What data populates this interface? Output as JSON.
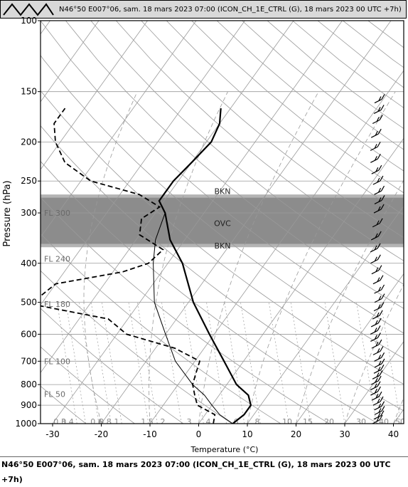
{
  "header": {
    "title": "N46°50 E007°06, sam. 18 mars 2023 07:00 (ICON_CH_1E_CTRL (G), 18 mars 2023 00 UTC  +7h)"
  },
  "footer": {
    "text": "N46°50 E007°06, sam. 18 mars 2023 07:00 (ICON_CH_1E_CTRL (G), 18 mars 2023 00 UTC  +7h)"
  },
  "colors": {
    "background": "#ffffff",
    "grid": "#9a9a9a",
    "cloud_band": "#8c8c8c",
    "temperature_line": "#000000"
  },
  "chart_data": {
    "type": "line",
    "subtype": "skew-T log-P sounding",
    "xlabel": "Temperature (°C)",
    "ylabel": "Pressure (hPa)",
    "xlim": [
      -33,
      42
    ],
    "ylim": [
      1000,
      100
    ],
    "yscale": "log",
    "x_ticks": [
      -30,
      -20,
      -10,
      0,
      10,
      20,
      30,
      40
    ],
    "y_ticks": [
      100,
      150,
      200,
      250,
      300,
      400,
      500,
      600,
      700,
      800,
      900,
      1000
    ],
    "isotherm_labels": [
      "-30",
      "-20",
      "-10",
      "0",
      "10",
      "20",
      "30",
      "40"
    ],
    "mixing_ratio_labels": [
      "0.3",
      "0.4",
      "0.6",
      "0.8",
      "1",
      "1.5",
      "2",
      "3",
      "4",
      "6",
      "8",
      "10",
      "15",
      "20",
      "30",
      "40",
      "50"
    ],
    "flight_levels": [
      {
        "label": "FL 300",
        "pressure": 300
      },
      {
        "label": "FL 240",
        "pressure": 390
      },
      {
        "label": "FL 180",
        "pressure": 505
      },
      {
        "label": "FL 100",
        "pressure": 700
      },
      {
        "label": "FL 50",
        "pressure": 845
      }
    ],
    "cloud_layers": [
      {
        "label": "BKN",
        "pressure": 265
      },
      {
        "label": "OVC",
        "pressure": 318
      },
      {
        "label": "BKN",
        "pressure": 362
      }
    ],
    "cloud_band": {
      "top_pressure": 270,
      "bottom_pressure": 365,
      "inner_top": 275,
      "inner_bottom": 358
    },
    "series": [
      {
        "name": "Temperature",
        "style": "bold",
        "points": [
          [
            1000,
            7
          ],
          [
            950,
            8
          ],
          [
            900,
            8
          ],
          [
            850,
            6
          ],
          [
            800,
            2
          ],
          [
            700,
            -4
          ],
          [
            600,
            -11
          ],
          [
            500,
            -19
          ],
          [
            400,
            -27
          ],
          [
            350,
            -33
          ],
          [
            300,
            -38
          ],
          [
            280,
            -41
          ],
          [
            250,
            -41
          ],
          [
            225,
            -40
          ],
          [
            200,
            -39
          ],
          [
            180,
            -40
          ],
          [
            165,
            -42
          ]
        ]
      },
      {
        "name": "Parcel",
        "style": "thin",
        "points": [
          [
            1000,
            7
          ],
          [
            950,
            3
          ],
          [
            900,
            0
          ],
          [
            850,
            -3
          ],
          [
            800,
            -7
          ],
          [
            700,
            -14
          ],
          [
            600,
            -20
          ],
          [
            500,
            -27
          ],
          [
            400,
            -33
          ],
          [
            350,
            -36
          ],
          [
            300,
            -38
          ]
        ]
      },
      {
        "name": "Dew point",
        "style": "dashed",
        "points": [
          [
            1000,
            3
          ],
          [
            950,
            2
          ],
          [
            900,
            -3
          ],
          [
            850,
            -5
          ],
          [
            800,
            -7
          ],
          [
            750,
            -8
          ],
          [
            700,
            -9
          ],
          [
            650,
            -16
          ],
          [
            600,
            -28
          ],
          [
            550,
            -34
          ],
          [
            510,
            -50
          ],
          [
            500,
            -52
          ],
          [
            450,
            -50
          ],
          [
            420,
            -38
          ],
          [
            400,
            -34
          ],
          [
            370,
            -33
          ],
          [
            340,
            -40
          ],
          [
            310,
            -42
          ],
          [
            290,
            -40
          ],
          [
            270,
            -46
          ],
          [
            250,
            -58
          ],
          [
            225,
            -66
          ],
          [
            200,
            -71
          ],
          [
            180,
            -74
          ],
          [
            165,
            -74
          ]
        ]
      }
    ],
    "wind_barbs": {
      "x_position": 35,
      "pressures": [
        1000,
        975,
        950,
        925,
        900,
        875,
        850,
        825,
        800,
        775,
        750,
        725,
        700,
        675,
        650,
        625,
        600,
        575,
        550,
        525,
        500,
        475,
        450,
        425,
        400,
        375,
        350,
        325,
        300,
        285,
        270,
        255,
        240,
        225,
        210,
        195,
        180,
        170,
        160
      ]
    }
  }
}
